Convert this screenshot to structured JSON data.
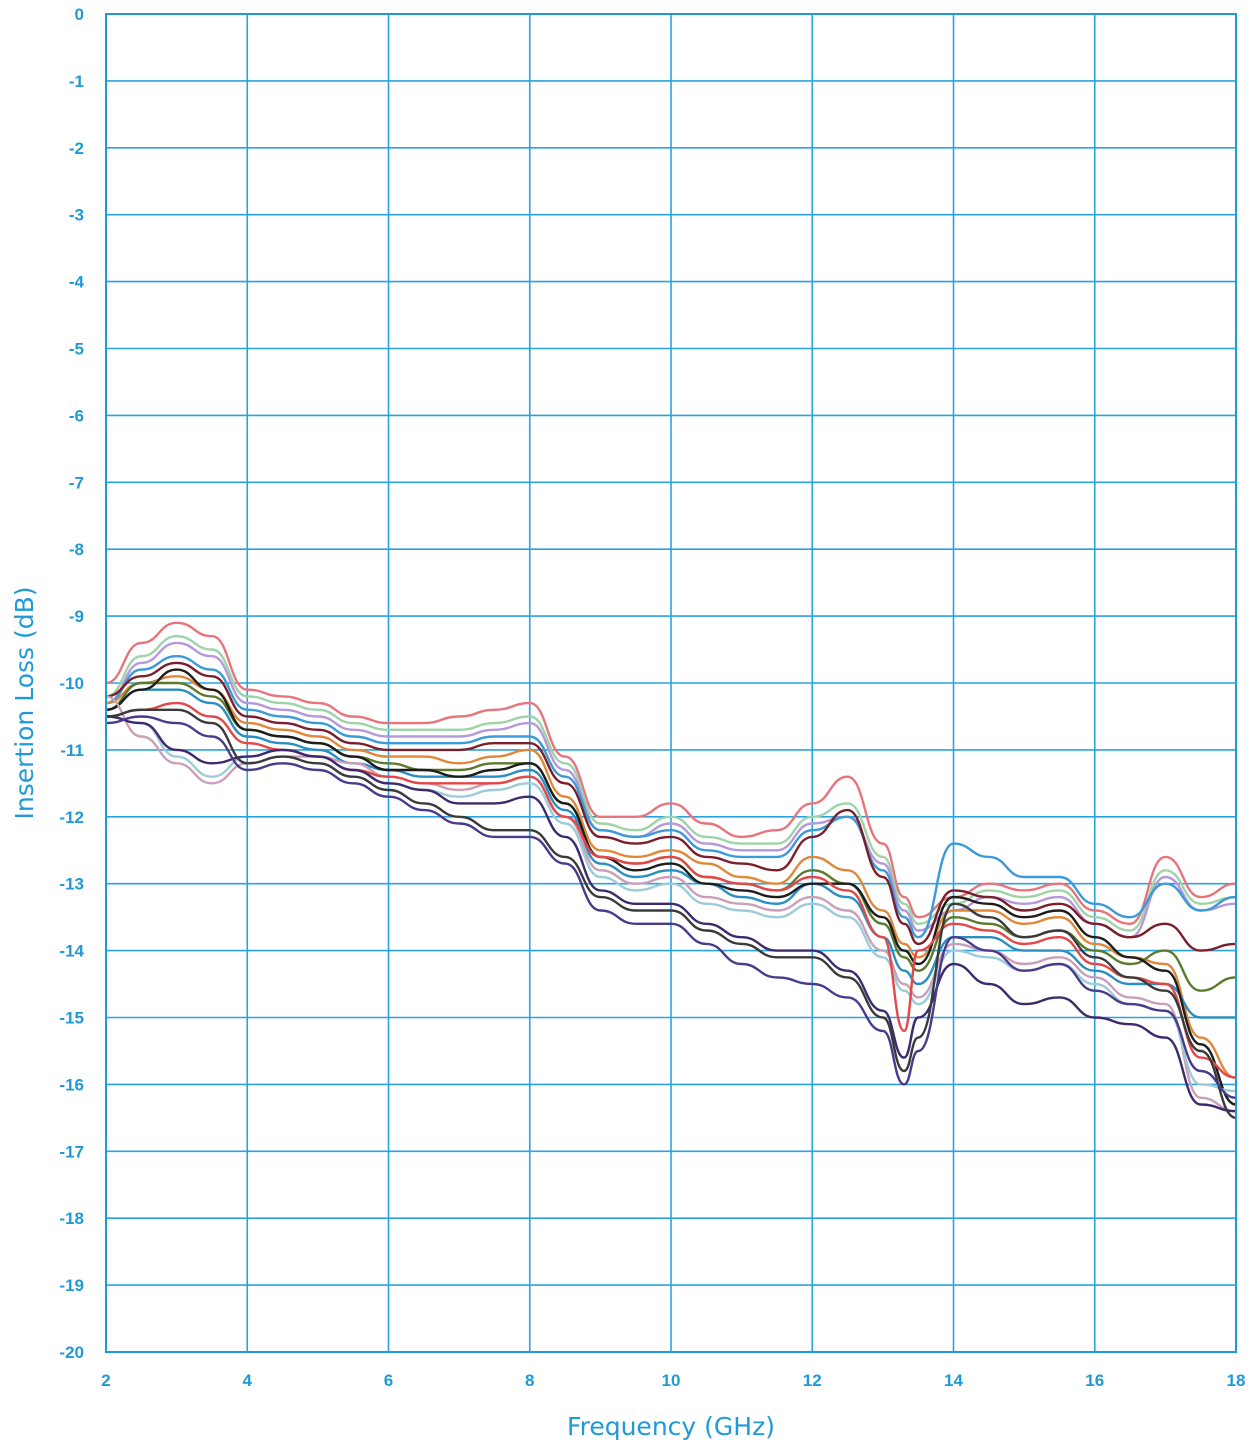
{
  "chart_data": {
    "type": "line",
    "title": "",
    "xlabel": "Frequency (GHz)",
    "ylabel": "Insertion Loss (dB)",
    "xlim": [
      2,
      18
    ],
    "ylim": [
      -20,
      0
    ],
    "x_ticks": [
      "2",
      "4",
      "6",
      "8",
      "10",
      "12",
      "14",
      "16",
      "18"
    ],
    "y_ticks": [
      "0",
      "-1",
      "-2",
      "-3",
      "-4",
      "-5",
      "-6",
      "-7",
      "-8",
      "-9",
      "-10",
      "-11",
      "-12",
      "-13",
      "-14",
      "-15",
      "-16",
      "-17",
      "-18",
      "-19",
      "-20"
    ],
    "grid": true,
    "legend": "none",
    "colors": {
      "axis": "#1f9ad6",
      "grid": "#29a3e0",
      "text": "#1f9ad6"
    },
    "x": [
      2,
      2.5,
      3,
      3.5,
      4,
      4.5,
      5,
      5.5,
      6,
      6.5,
      7,
      7.5,
      8,
      8.5,
      9,
      9.5,
      10,
      10.5,
      11,
      11.5,
      12,
      12.5,
      13,
      13.3,
      13.5,
      14,
      14.5,
      15,
      15.5,
      16,
      16.5,
      17,
      17.5,
      18
    ],
    "series": [
      {
        "color": "#e8747c",
        "values": [
          -10.0,
          -9.4,
          -9.1,
          -9.3,
          -10.1,
          -10.2,
          -10.3,
          -10.5,
          -10.6,
          -10.6,
          -10.5,
          -10.4,
          -10.3,
          -11.1,
          -12.0,
          -12.0,
          -11.8,
          -12.1,
          -12.3,
          -12.2,
          -11.8,
          -11.4,
          -12.4,
          -13.2,
          -13.5,
          -13.2,
          -13.0,
          -13.1,
          -13.0,
          -13.4,
          -13.6,
          -12.6,
          -13.2,
          -13.0
        ]
      },
      {
        "color": "#9fd3a8",
        "values": [
          -10.2,
          -9.6,
          -9.3,
          -9.5,
          -10.2,
          -10.3,
          -10.4,
          -10.6,
          -10.7,
          -10.7,
          -10.7,
          -10.6,
          -10.5,
          -11.2,
          -12.1,
          -12.2,
          -12.0,
          -12.3,
          -12.4,
          -12.4,
          -12.0,
          -11.8,
          -12.6,
          -13.3,
          -13.6,
          -13.3,
          -13.1,
          -13.2,
          -13.1,
          -13.5,
          -13.7,
          -12.8,
          -13.3,
          -13.2
        ]
      },
      {
        "color": "#b599d8",
        "values": [
          -10.3,
          -9.7,
          -9.4,
          -9.6,
          -10.3,
          -10.4,
          -10.5,
          -10.7,
          -10.8,
          -10.8,
          -10.8,
          -10.7,
          -10.6,
          -11.3,
          -12.2,
          -12.3,
          -12.1,
          -12.4,
          -12.5,
          -12.5,
          -12.1,
          -12.0,
          -12.7,
          -13.4,
          -13.7,
          -13.4,
          -13.2,
          -13.3,
          -13.2,
          -13.6,
          -13.8,
          -12.9,
          -13.4,
          -13.3
        ]
      },
      {
        "color": "#3b9ad9",
        "values": [
          -10.3,
          -9.8,
          -9.6,
          -9.8,
          -10.4,
          -10.5,
          -10.6,
          -10.8,
          -10.9,
          -10.9,
          -10.9,
          -10.8,
          -10.8,
          -11.4,
          -12.2,
          -12.3,
          -12.2,
          -12.5,
          -12.6,
          -12.6,
          -12.2,
          -12.0,
          -12.8,
          -13.5,
          -13.8,
          -12.4,
          -12.6,
          -12.9,
          -12.9,
          -13.3,
          -13.5,
          -13.0,
          -13.4,
          -13.2
        ]
      },
      {
        "color": "#7a1f2b",
        "values": [
          -10.2,
          -9.9,
          -9.7,
          -9.9,
          -10.5,
          -10.6,
          -10.7,
          -10.9,
          -11.0,
          -11.0,
          -11.0,
          -10.9,
          -10.9,
          -11.5,
          -12.3,
          -12.4,
          -12.3,
          -12.6,
          -12.7,
          -12.8,
          -12.3,
          -11.9,
          -12.9,
          -13.6,
          -13.9,
          -13.1,
          -13.2,
          -13.4,
          -13.3,
          -13.6,
          -13.8,
          -13.6,
          -14.0,
          -13.9
        ]
      },
      {
        "color": "#e0873a",
        "values": [
          -10.3,
          -10.0,
          -9.9,
          -10.1,
          -10.6,
          -10.7,
          -10.8,
          -11.0,
          -11.1,
          -11.1,
          -11.2,
          -11.1,
          -11.0,
          -11.7,
          -12.5,
          -12.6,
          -12.5,
          -12.7,
          -12.9,
          -13.0,
          -12.6,
          -12.8,
          -13.4,
          -13.9,
          -14.1,
          -13.4,
          -13.4,
          -13.6,
          -13.5,
          -13.9,
          -14.1,
          -14.2,
          -15.3,
          -15.9
        ]
      },
      {
        "color": "#5c7a2e",
        "values": [
          -10.4,
          -10.0,
          -10.0,
          -10.2,
          -10.7,
          -10.8,
          -10.9,
          -11.1,
          -11.2,
          -11.3,
          -11.3,
          -11.2,
          -11.2,
          -11.8,
          -12.6,
          -12.7,
          -12.6,
          -12.9,
          -13.0,
          -13.1,
          -12.8,
          -13.0,
          -13.6,
          -14.1,
          -14.3,
          -13.5,
          -13.6,
          -13.8,
          -13.7,
          -14.0,
          -14.2,
          -14.0,
          -14.6,
          -14.4
        ]
      },
      {
        "color": "#2a8fc0",
        "values": [
          -10.4,
          -10.1,
          -10.1,
          -10.3,
          -10.8,
          -10.9,
          -11.0,
          -11.2,
          -11.3,
          -11.4,
          -11.4,
          -11.4,
          -11.3,
          -11.9,
          -12.7,
          -12.9,
          -12.8,
          -13.0,
          -13.2,
          -13.3,
          -13.0,
          -13.2,
          -13.8,
          -14.3,
          -14.5,
          -13.8,
          -13.8,
          -14.0,
          -14.0,
          -14.3,
          -14.5,
          -14.5,
          -15.0,
          -15.0
        ]
      },
      {
        "color": "#1d1d1d",
        "values": [
          -10.4,
          -10.1,
          -9.8,
          -10.1,
          -10.7,
          -10.8,
          -10.9,
          -11.1,
          -11.3,
          -11.3,
          -11.4,
          -11.3,
          -11.2,
          -11.8,
          -12.6,
          -12.8,
          -12.7,
          -13.0,
          -13.1,
          -13.2,
          -13.0,
          -13.0,
          -13.5,
          -14.0,
          -14.2,
          -13.2,
          -13.3,
          -13.5,
          -13.4,
          -13.8,
          -14.1,
          -14.3,
          -15.4,
          -16.3
        ]
      },
      {
        "color": "#c9a0b8",
        "values": [
          -10.2,
          -10.8,
          -11.2,
          -11.5,
          -11.2,
          -11.1,
          -11.1,
          -11.2,
          -11.4,
          -11.5,
          -11.6,
          -11.5,
          -11.4,
          -12.0,
          -12.8,
          -13.0,
          -12.9,
          -13.2,
          -13.3,
          -13.4,
          -13.2,
          -13.4,
          -14.0,
          -14.5,
          -14.7,
          -13.9,
          -14.0,
          -14.2,
          -14.1,
          -14.4,
          -14.7,
          -14.8,
          -16.2,
          -16.4
        ]
      },
      {
        "color": "#9ccbd9",
        "values": [
          -10.5,
          -10.6,
          -11.1,
          -11.4,
          -11.1,
          -11.0,
          -11.1,
          -11.3,
          -11.5,
          -11.6,
          -11.7,
          -11.6,
          -11.5,
          -12.1,
          -12.9,
          -13.1,
          -13.0,
          -13.3,
          -13.4,
          -13.5,
          -13.3,
          -13.5,
          -14.1,
          -14.6,
          -14.8,
          -14.0,
          -14.1,
          -14.3,
          -14.2,
          -14.5,
          -14.8,
          -14.9,
          -16.0,
          -16.1
        ]
      },
      {
        "color": "#e54646",
        "values": [
          -10.5,
          -10.4,
          -10.3,
          -10.5,
          -10.9,
          -11.0,
          -11.1,
          -11.3,
          -11.4,
          -11.5,
          -11.5,
          -11.5,
          -11.4,
          -12.0,
          -12.6,
          -12.7,
          -12.6,
          -12.9,
          -13.0,
          -13.1,
          -12.9,
          -13.1,
          -13.8,
          -15.2,
          -14.0,
          -13.6,
          -13.7,
          -13.9,
          -13.8,
          -14.2,
          -14.4,
          -14.5,
          -15.6,
          -15.9
        ]
      },
      {
        "color": "#3d2a6e",
        "values": [
          -10.5,
          -10.6,
          -11.0,
          -11.2,
          -11.1,
          -11.0,
          -11.1,
          -11.3,
          -11.5,
          -11.6,
          -11.8,
          -11.8,
          -11.7,
          -12.3,
          -13.1,
          -13.3,
          -13.3,
          -13.6,
          -13.8,
          -14.0,
          -14.0,
          -14.3,
          -14.9,
          -15.6,
          -15.0,
          -14.2,
          -14.5,
          -14.8,
          -14.7,
          -15.0,
          -15.1,
          -15.3,
          -16.3,
          -16.4
        ]
      },
      {
        "color": "#3a3a3a",
        "values": [
          -10.5,
          -10.4,
          -10.4,
          -10.6,
          -11.2,
          -11.1,
          -11.2,
          -11.4,
          -11.6,
          -11.8,
          -12.0,
          -12.2,
          -12.2,
          -12.6,
          -13.2,
          -13.4,
          -13.4,
          -13.7,
          -13.9,
          -14.1,
          -14.1,
          -14.4,
          -15.0,
          -15.8,
          -15.3,
          -13.3,
          -13.5,
          -13.8,
          -13.7,
          -14.1,
          -14.4,
          -14.6,
          -15.5,
          -16.5
        ]
      },
      {
        "color": "#4a3a8c",
        "values": [
          -10.6,
          -10.5,
          -10.6,
          -10.8,
          -11.3,
          -11.2,
          -11.3,
          -11.5,
          -11.7,
          -11.9,
          -12.1,
          -12.3,
          -12.3,
          -12.7,
          -13.4,
          -13.6,
          -13.6,
          -13.9,
          -14.2,
          -14.4,
          -14.5,
          -14.7,
          -15.2,
          -16.0,
          -15.5,
          -13.8,
          -14.0,
          -14.3,
          -14.2,
          -14.6,
          -14.8,
          -14.9,
          -15.8,
          -16.2
        ]
      }
    ]
  }
}
